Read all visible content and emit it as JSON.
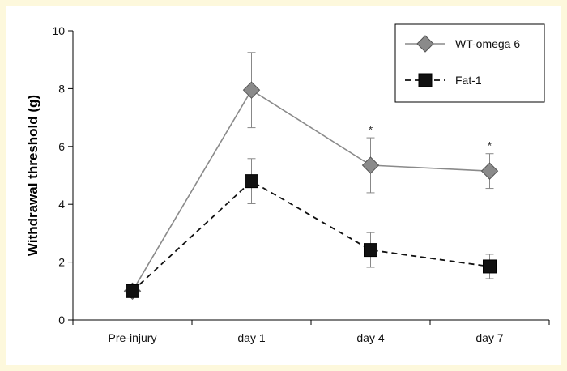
{
  "chart_data": {
    "type": "line",
    "categories": [
      "Pre-injury",
      "day 1",
      "day 4",
      "day 7"
    ],
    "ylabel": "Withdrawal threshold (g)",
    "xlabel": "",
    "ylim": [
      0,
      10
    ],
    "yticks": [
      0,
      2,
      4,
      6,
      8,
      10
    ],
    "grid": false,
    "legend": "top-right",
    "series": [
      {
        "name": "WT-omega 6",
        "values": [
          1.0,
          7.95,
          5.35,
          5.15
        ],
        "error": [
          0.1,
          1.3,
          0.95,
          0.6
        ],
        "color": "#8a8a8a",
        "marker": "diamond",
        "line": "solid"
      },
      {
        "name": "Fat-1",
        "values": [
          1.0,
          4.8,
          2.42,
          1.85
        ],
        "error": [
          0.1,
          0.78,
          0.6,
          0.42
        ],
        "color": "#111111",
        "marker": "square",
        "line": "dashed"
      }
    ],
    "annotations": [
      {
        "category": "day 4",
        "text": "*"
      },
      {
        "category": "day 7",
        "text": "*"
      }
    ]
  }
}
